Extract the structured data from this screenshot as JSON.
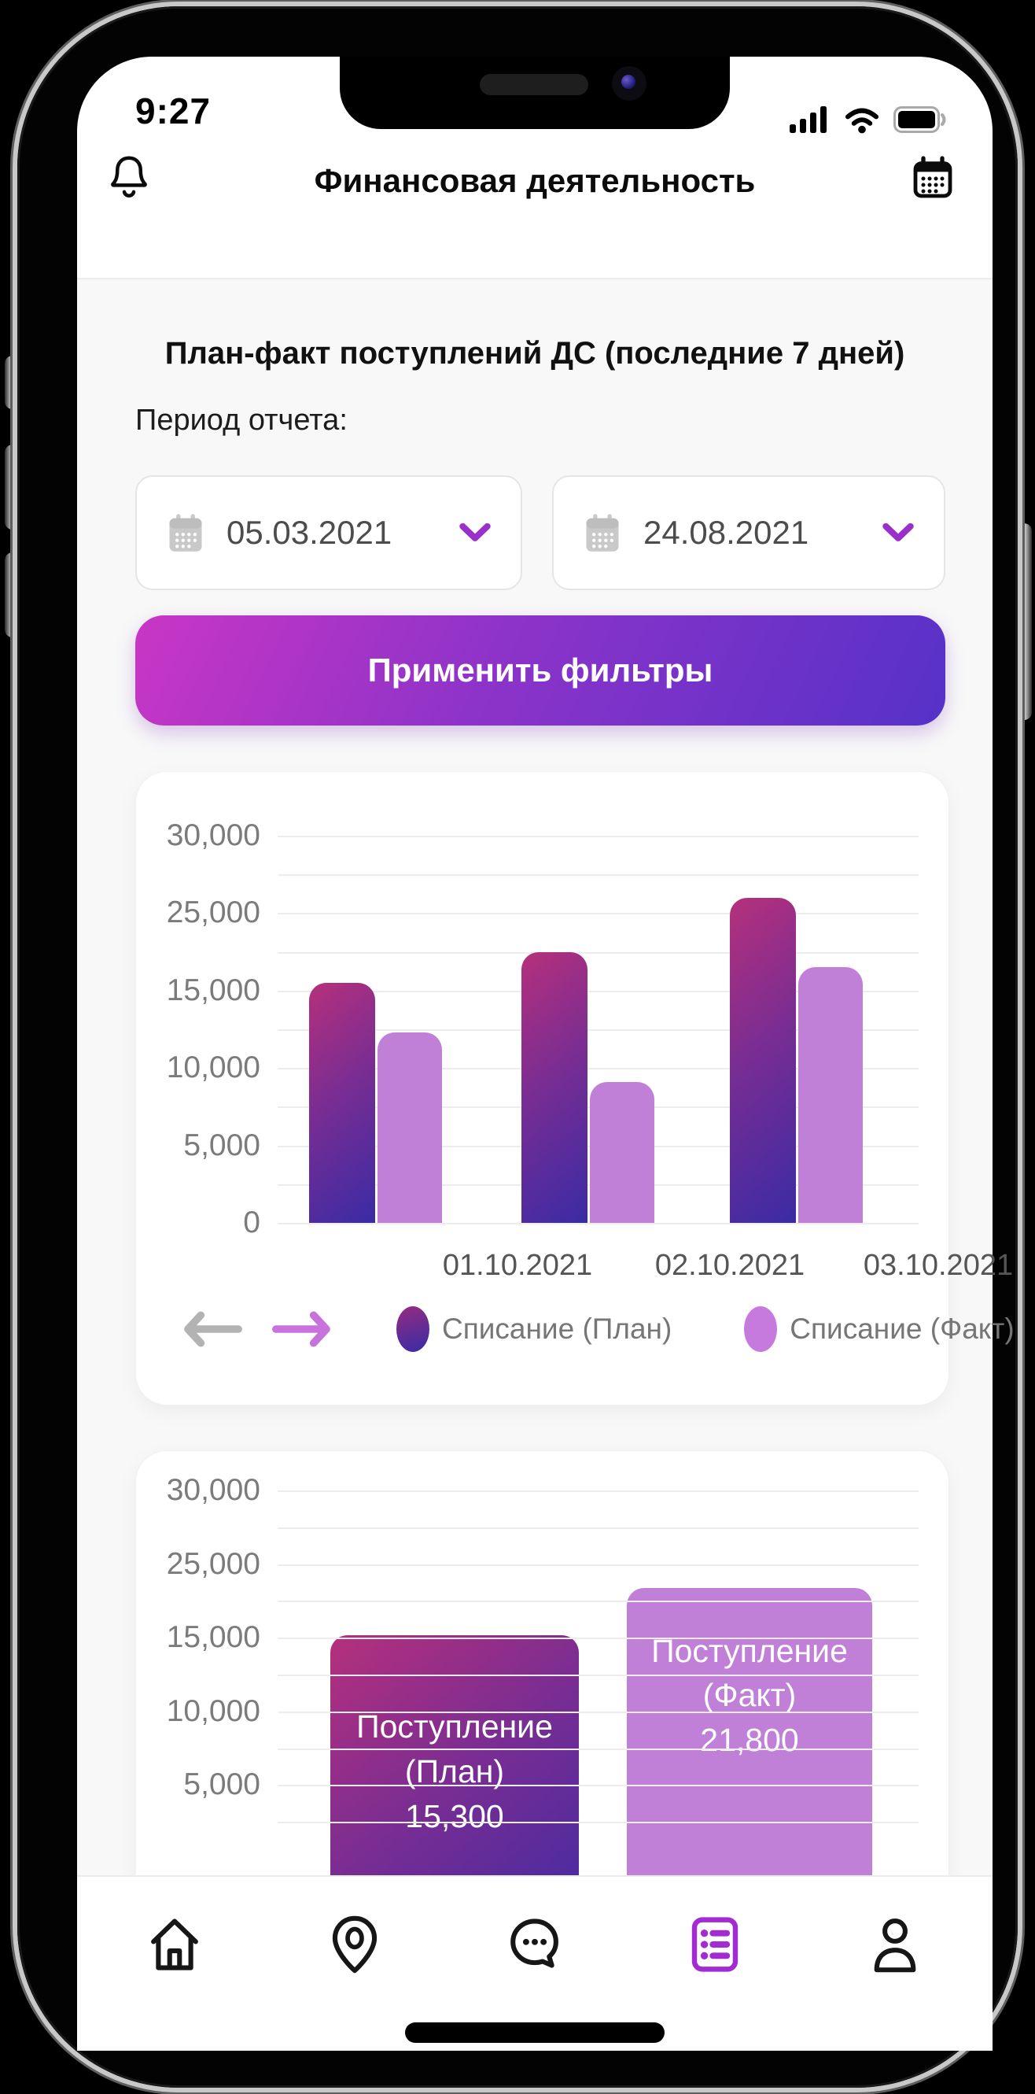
{
  "status_bar": {
    "time": "9:27",
    "icons": [
      "cellular-signal-icon",
      "wifi-icon",
      "battery-full-icon"
    ]
  },
  "header": {
    "title": "Финансовая деятельность",
    "left_icon": "bell-icon",
    "right_icon": "calendar-icon"
  },
  "filters": {
    "section_title": "План-факт поступлений ДС (последние 7 дней)",
    "period_label": "Период отчета:",
    "date_from": {
      "value": "05.03.2021",
      "icon": "calendar-icon"
    },
    "date_to": {
      "value": "24.08.2021",
      "icon": "calendar-icon"
    },
    "apply_button_label": "Применить фильтры"
  },
  "chart_data": [
    {
      "type": "bar",
      "title": "",
      "categories": [
        "01.10.2021",
        "02.10.2021",
        "03.10.2021"
      ],
      "series": [
        {
          "name": "Списание (План)",
          "values": [
            16000,
            20000,
            26000
          ]
        },
        {
          "name": "Списание (Факт)",
          "values": [
            12300,
            9100,
            18000
          ]
        }
      ],
      "y_ticks": [
        "30,000",
        "25,000",
        "15,000",
        "10,000",
        "5,000",
        "0"
      ],
      "ylim": [
        0,
        30000
      ],
      "grid": true,
      "legend_position": "bottom",
      "axis_note": "y-axis labels skip 20,000; unlabeled gridline between each labeled tick; series values estimated from bar heights",
      "pager_icons": [
        "arrow-left-icon",
        "arrow-right-icon"
      ]
    },
    {
      "type": "bar",
      "categories": [
        "Поступление (План)",
        "Поступление (Факт)"
      ],
      "values": [
        15300,
        21800
      ],
      "bars": [
        {
          "name_line1": "Поступление",
          "name_line2": "(План)",
          "value_label": "15,300",
          "value": 15300
        },
        {
          "name_line1": "Поступление",
          "name_line2": "(Факт)",
          "value_label": "21,800",
          "value": 21800
        }
      ],
      "y_ticks": [
        "30,000",
        "25,000",
        "15,000",
        "10,000",
        "5,000"
      ],
      "ylim": [
        0,
        30000
      ],
      "grid": true,
      "axis_note": "chart clipped at bottom by navigation bar; y-axis labels skip 20,000"
    }
  ],
  "nav": {
    "items": [
      {
        "name": "home",
        "icon": "home-icon",
        "active": false
      },
      {
        "name": "location",
        "icon": "map-pin-icon",
        "active": false
      },
      {
        "name": "chat",
        "icon": "chat-bubble-icon",
        "active": false
      },
      {
        "name": "reports",
        "icon": "list-icon",
        "active": true
      },
      {
        "name": "profile",
        "icon": "person-icon",
        "active": false
      }
    ]
  },
  "colors": {
    "accent_purple": "#A32BD4",
    "chevron_purple": "#9B2FC9",
    "button_gradient_start": "#C936C5",
    "button_gradient_end": "#5632C8",
    "bar_plan_gradient_start": "#B5307C",
    "bar_plan_gradient_end": "#3A2BA5",
    "bar_fact": "#C180D8",
    "axis_label_gray": "#7B7B7B",
    "legend_text_gray": "#767676",
    "content_background": "#F8F8F8"
  }
}
